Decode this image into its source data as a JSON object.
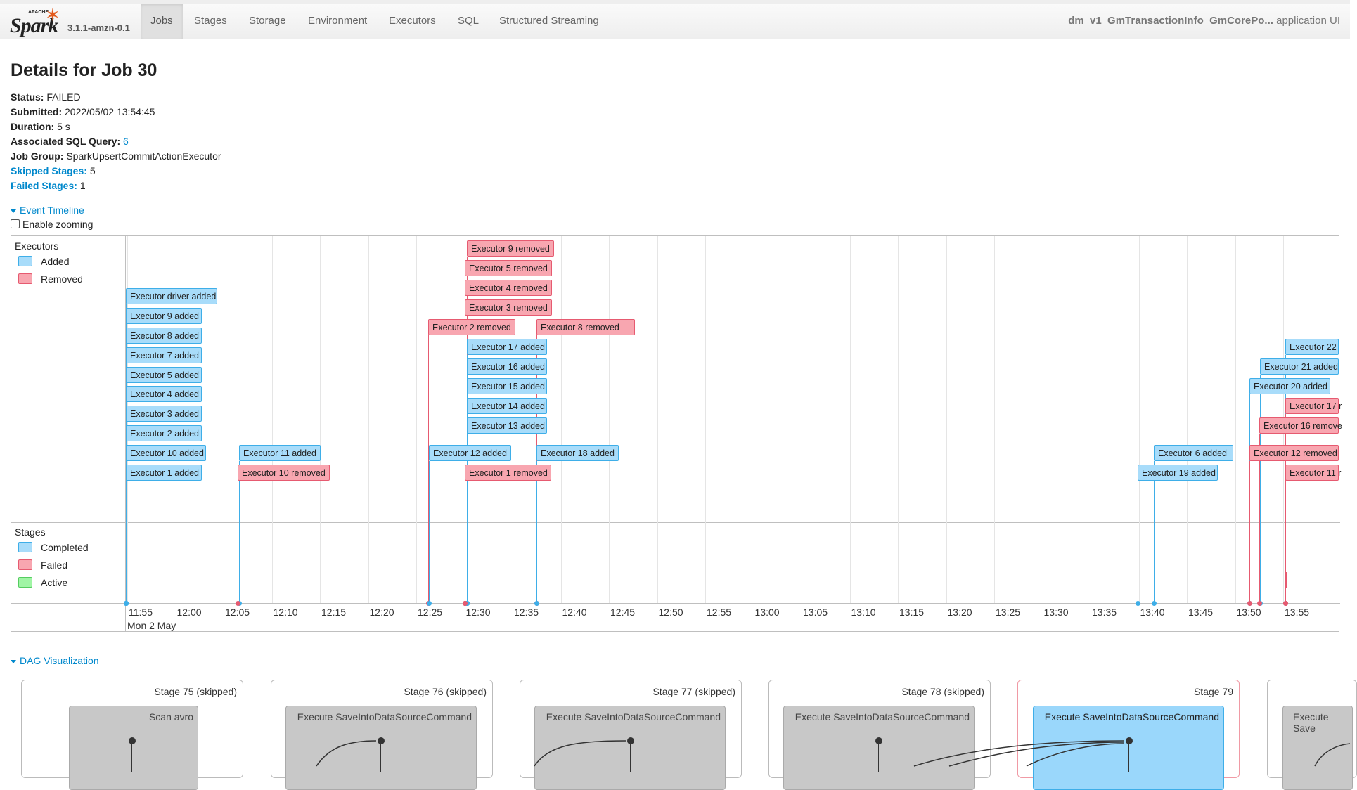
{
  "nav": {
    "version": "3.1.1-amzn-0.1",
    "tabs": [
      "Jobs",
      "Stages",
      "Storage",
      "Environment",
      "Executors",
      "SQL",
      "Structured Streaming"
    ],
    "app_name": "dm_v1_GmTransactionInfo_GmCorePo...",
    "app_suffix": "application UI",
    "brand_apache": "APACHE",
    "brand_spark": "Spark"
  },
  "page": {
    "title": "Details for Job 30",
    "status_key": "Status:",
    "status_val": "FAILED",
    "submitted_key": "Submitted:",
    "submitted_val": "2022/05/02 13:54:45",
    "duration_key": "Duration:",
    "duration_val": "5 s",
    "sql_key": "Associated SQL Query:",
    "sql_val": "6",
    "group_key": "Job Group:",
    "group_val": "SparkUpsertCommitActionExecutor",
    "skipped_key": "Skipped Stages:",
    "skipped_val": "5",
    "failed_key": "Failed Stages:",
    "failed_val": "1",
    "event_timeline": "Event Timeline",
    "enable_zoom": "Enable zooming",
    "dag_visualization": "DAG Visualization"
  },
  "timeline": {
    "executors_title": "Executors",
    "legend_added": "Added",
    "legend_removed": "Removed",
    "stages_title": "Stages",
    "legend_completed": "Completed",
    "legend_failed": "Failed",
    "legend_active": "Active",
    "date_label": "Mon 2 May",
    "ticks": [
      "11:55",
      "12:00",
      "12:05",
      "12:10",
      "12:15",
      "12:20",
      "12:25",
      "12:30",
      "12:35",
      "12:40",
      "12:45",
      "12:50",
      "12:55",
      "13:00",
      "13:05",
      "13:10",
      "13:15",
      "13:20",
      "13:25",
      "13:30",
      "13:35",
      "13:40",
      "13:45",
      "13:50",
      "13:55"
    ],
    "events": [
      {
        "text": "Executor driver added",
        "type": "added"
      },
      {
        "text": "Executor 9 added",
        "type": "added"
      },
      {
        "text": "Executor 8 added",
        "type": "added"
      },
      {
        "text": "Executor 7 added",
        "type": "added"
      },
      {
        "text": "Executor 5 added",
        "type": "added"
      },
      {
        "text": "Executor 4 added",
        "type": "added"
      },
      {
        "text": "Executor 3 added",
        "type": "added"
      },
      {
        "text": "Executor 2 added",
        "type": "added"
      },
      {
        "text": "Executor 10 added",
        "type": "added"
      },
      {
        "text": "Executor 1 added",
        "type": "added"
      },
      {
        "text": "Executor 11 added",
        "type": "added"
      },
      {
        "text": "Executor 10 removed",
        "type": "removed"
      },
      {
        "text": "Executor 9 removed",
        "type": "removed"
      },
      {
        "text": "Executor 5 removed",
        "type": "removed"
      },
      {
        "text": "Executor 4 removed",
        "type": "removed"
      },
      {
        "text": "Executor 3 removed",
        "type": "removed"
      },
      {
        "text": "Executor 2 removed",
        "type": "removed"
      },
      {
        "text": "Executor 8 removed",
        "type": "removed"
      },
      {
        "text": "Executor 17 added",
        "type": "added"
      },
      {
        "text": "Executor 16 added",
        "type": "added"
      },
      {
        "text": "Executor 15 added",
        "type": "added"
      },
      {
        "text": "Executor 14 added",
        "type": "added"
      },
      {
        "text": "Executor 13 added",
        "type": "added"
      },
      {
        "text": "Executor 12 added",
        "type": "added"
      },
      {
        "text": "Executor 18 added",
        "type": "added"
      },
      {
        "text": "Executor 1 removed",
        "type": "removed"
      },
      {
        "text": "Executor 6 added",
        "type": "added"
      },
      {
        "text": "Executor 19 added",
        "type": "added"
      },
      {
        "text": "Executor 22",
        "type": "added"
      },
      {
        "text": "Executor 21 added",
        "type": "added"
      },
      {
        "text": "Executor 20 added",
        "type": "added"
      },
      {
        "text": "Executor 17 r",
        "type": "removed"
      },
      {
        "text": "Executor 16 remove",
        "type": "removed"
      },
      {
        "text": "Executor 12 removed",
        "type": "removed"
      },
      {
        "text": "Executor 11 r",
        "type": "removed"
      }
    ]
  },
  "dag": {
    "stages": [
      {
        "label": "Stage 75 (skipped)",
        "inner": "Scan avro"
      },
      {
        "label": "Stage 76 (skipped)",
        "inner": "Execute SaveIntoDataSourceCommand"
      },
      {
        "label": "Stage 77 (skipped)",
        "inner": "Execute SaveIntoDataSourceCommand"
      },
      {
        "label": "Stage 78 (skipped)",
        "inner": "Execute SaveIntoDataSourceCommand"
      },
      {
        "label": "Stage 79",
        "inner": "Execute SaveIntoDataSourceCommand"
      },
      {
        "label": "",
        "inner": "Execute Save"
      }
    ]
  },
  "colors": {
    "added": "#a8dcfa",
    "removed": "#f8a6b0",
    "active": "#a0f5a5",
    "link": "#0088cc"
  }
}
